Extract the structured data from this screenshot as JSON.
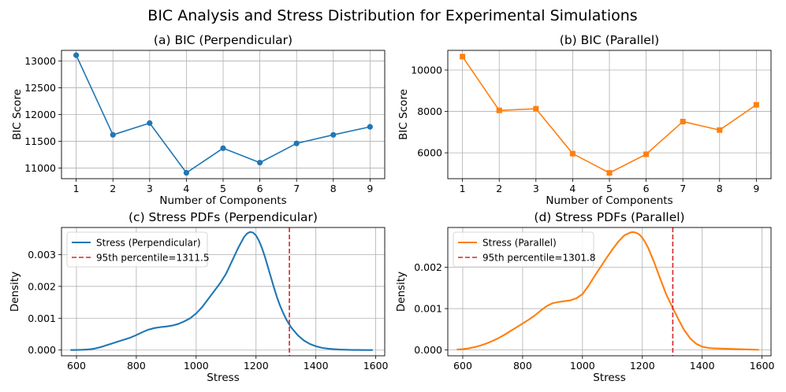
{
  "figure": {
    "suptitle": "BIC Analysis and Stress Distribution for Experimental Simulations"
  },
  "colors": {
    "blue": "#1f77b4",
    "orange": "#ff7f0e",
    "red": "#d62728",
    "grid": "#b0b0b0"
  },
  "chart_data": [
    {
      "id": "a",
      "type": "line",
      "title": "(a) BIC (Perpendicular)",
      "xlabel": "Number of Components",
      "ylabel": "BIC Score",
      "x": [
        1,
        2,
        3,
        4,
        5,
        6,
        7,
        8,
        9
      ],
      "xlim": [
        0.6,
        9.4
      ],
      "ylim": [
        10800,
        13200
      ],
      "xticks": [
        1,
        2,
        3,
        4,
        5,
        6,
        7,
        8,
        9
      ],
      "xtick_labels": [
        "1",
        "2",
        "3",
        "4",
        "5",
        "6",
        "7",
        "8",
        "9"
      ],
      "yticks": [
        11000,
        11500,
        12000,
        12500,
        13000
      ],
      "ytick_labels": [
        "11000",
        "11500",
        "12000",
        "12500",
        "13000"
      ],
      "grid": true,
      "series": [
        {
          "name": "BIC (Perpendicular)",
          "color": "#1f77b4",
          "marker": "circle",
          "values": [
            13110,
            11620,
            11840,
            10910,
            11370,
            11100,
            11460,
            11620,
            11770
          ]
        }
      ]
    },
    {
      "id": "b",
      "type": "line",
      "title": "(b) BIC (Parallel)",
      "xlabel": "Number of Components",
      "ylabel": "BIC Score",
      "x": [
        1,
        2,
        3,
        4,
        5,
        6,
        7,
        8,
        9
      ],
      "xlim": [
        0.6,
        9.4
      ],
      "ylim": [
        4750,
        10950
      ],
      "xticks": [
        1,
        2,
        3,
        4,
        5,
        6,
        7,
        8,
        9
      ],
      "xtick_labels": [
        "1",
        "2",
        "3",
        "4",
        "5",
        "6",
        "7",
        "8",
        "9"
      ],
      "yticks": [
        6000,
        8000,
        10000
      ],
      "ytick_labels": [
        "6000",
        "8000",
        "10000"
      ],
      "grid": true,
      "series": [
        {
          "name": "BIC (Parallel)",
          "color": "#ff7f0e",
          "marker": "square",
          "values": [
            10650,
            8050,
            8130,
            5960,
            5030,
            5930,
            7510,
            7100,
            8320
          ]
        }
      ]
    },
    {
      "id": "c",
      "type": "line",
      "title": "(c) Stress PDFs (Perpendicular)",
      "xlabel": "Stress",
      "ylabel": "Density",
      "xlim": [
        550,
        1630
      ],
      "ylim": [
        -0.00018,
        0.00385
      ],
      "xticks": [
        600,
        800,
        1000,
        1200,
        1400,
        1600
      ],
      "xtick_labels": [
        "600",
        "800",
        "1000",
        "1200",
        "1400",
        "1600"
      ],
      "yticks": [
        0,
        0.001,
        0.002,
        0.003
      ],
      "ytick_labels": [
        "0.000",
        "0.001",
        "0.002",
        "0.003"
      ],
      "grid": true,
      "legend_position": "top-left",
      "series": [
        {
          "name": "Stress (Perpendicular)",
          "color": "#1f77b4",
          "x": [
            580,
            600,
            620,
            640,
            660,
            680,
            700,
            720,
            740,
            760,
            780,
            800,
            820,
            840,
            860,
            880,
            900,
            920,
            940,
            960,
            980,
            1000,
            1020,
            1040,
            1060,
            1080,
            1100,
            1120,
            1140,
            1160,
            1170,
            1180,
            1190,
            1200,
            1210,
            1220,
            1230,
            1240,
            1250,
            1260,
            1270,
            1280,
            1290,
            1300,
            1310,
            1320,
            1340,
            1360,
            1380,
            1400,
            1420,
            1440,
            1460,
            1480,
            1500,
            1520,
            1540,
            1560,
            1590
          ],
          "y": [
            2e-06,
            5e-06,
            1e-05,
            2e-05,
            4.5e-05,
            9e-05,
            0.00015,
            0.00021,
            0.00027,
            0.00033,
            0.00039,
            0.00047,
            0.00056,
            0.00064,
            0.00069,
            0.00072,
            0.00074,
            0.00077,
            0.00082,
            0.0009,
            0.001,
            0.00115,
            0.00135,
            0.0016,
            0.00185,
            0.0021,
            0.0024,
            0.0028,
            0.0032,
            0.00355,
            0.00366,
            0.00371,
            0.00369,
            0.0036,
            0.00343,
            0.0032,
            0.00292,
            0.0026,
            0.00228,
            0.00196,
            0.00166,
            0.0014,
            0.00118,
            0.00098,
            0.00082,
            0.00068,
            0.00046,
            0.0003,
            0.00019,
            0.00012,
            7e-05,
            4.5e-05,
            2.8e-05,
            1.6e-05,
            9e-06,
            5e-06,
            3e-06,
            2e-06,
            1e-06
          ]
        },
        {
          "name": "95th percentile=1311.5",
          "color": "#d62728",
          "dashed": true,
          "vline": 1311.5
        }
      ]
    },
    {
      "id": "d",
      "type": "line",
      "title": "(d) Stress PDFs (Parallel)",
      "xlabel": "Stress",
      "ylabel": "Density",
      "xlim": [
        550,
        1630
      ],
      "ylim": [
        -0.00014,
        0.00296
      ],
      "xticks": [
        600,
        800,
        1000,
        1200,
        1400,
        1600
      ],
      "xtick_labels": [
        "600",
        "800",
        "1000",
        "1200",
        "1400",
        "1600"
      ],
      "yticks": [
        0,
        0.001,
        0.002
      ],
      "ytick_labels": [
        "0.000",
        "0.001",
        "0.002"
      ],
      "grid": true,
      "legend_position": "top-left",
      "series": [
        {
          "name": "Stress (Parallel)",
          "color": "#ff7f0e",
          "x": [
            580,
            600,
            620,
            640,
            660,
            680,
            700,
            720,
            740,
            760,
            780,
            800,
            820,
            840,
            860,
            880,
            900,
            920,
            940,
            960,
            980,
            1000,
            1020,
            1040,
            1060,
            1080,
            1100,
            1120,
            1140,
            1160,
            1170,
            1180,
            1190,
            1200,
            1210,
            1220,
            1240,
            1260,
            1280,
            1300,
            1320,
            1340,
            1360,
            1380,
            1400,
            1420,
            1440,
            1460,
            1480,
            1500,
            1520,
            1540,
            1560,
            1590
          ],
          "y": [
            1e-05,
            2e-05,
            4e-05,
            7e-05,
            0.00011,
            0.00016,
            0.00022,
            0.00029,
            0.00037,
            0.00046,
            0.00055,
            0.00064,
            0.00073,
            0.00083,
            0.00095,
            0.00106,
            0.00113,
            0.00116,
            0.00118,
            0.0012,
            0.00125,
            0.00135,
            0.00155,
            0.00178,
            0.002,
            0.00222,
            0.00243,
            0.00262,
            0.00277,
            0.00284,
            0.00285,
            0.00283,
            0.00279,
            0.00271,
            0.0026,
            0.00246,
            0.00211,
            0.00172,
            0.00134,
            0.00104,
            0.00075,
            0.00048,
            0.00028,
            0.00015,
            8e-05,
            5e-05,
            4e-05,
            3.5e-05,
            3e-05,
            2.5e-05,
            2e-05,
            1.5e-05,
            1e-05,
            5e-06
          ]
        },
        {
          "name": "95th percentile=1301.8",
          "color": "#d62728",
          "dashed": true,
          "vline": 1301.8
        }
      ]
    }
  ]
}
